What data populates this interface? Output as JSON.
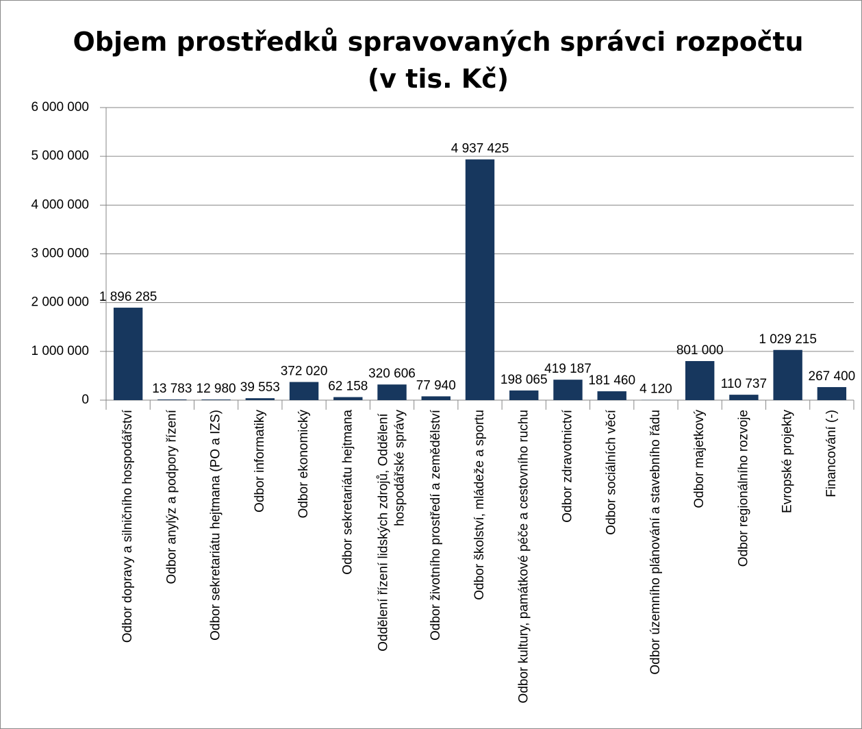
{
  "chart_data": {
    "type": "bar",
    "title": [
      "Objem prostředků spravovaných správci rozpočtu",
      "(v tis. Kč)"
    ],
    "categories": [
      "Odbor dopravy a silničního hospodářství",
      "Odbor anylýz a podpory řízení",
      "Odbor sekretariátu hejtmana (PO a IZS)",
      "Odbor informatiky",
      "Odbor ekonomický",
      "Odbor sekretariátu hejtmana",
      "Oddělení řízení lidských zdrojů, Oddělení hospodářské správy",
      "Odbor životního prostředí a zemědělství",
      "Odbor školství, mládeže a sportu",
      "Odbor kultury, památkové péče a cestovního ruchu",
      "Odbor zdravotnictví",
      "Odbor sociálních věcí",
      "Odbor územního plánování a stavebního řádu",
      "Odbor majetkový",
      "Odbor regionálního rozvoje",
      "Evropské projekty",
      "Financování (-)"
    ],
    "values": [
      1896285,
      13783,
      12980,
      39553,
      372020,
      62158,
      320606,
      77940,
      4937425,
      198065,
      419187,
      181460,
      4120,
      801000,
      110737,
      1029215,
      267400
    ],
    "value_labels": [
      "1 896 285",
      "13 783",
      "12 980",
      "39 553",
      "372 020",
      "62 158",
      "320 606",
      "77 940",
      "4 937 425",
      "198 065",
      "419 187",
      "181 460",
      "4 120",
      "801 000",
      "110 737",
      "1 029 215",
      "267 400"
    ],
    "color": "#17375e",
    "ylim": [
      0,
      6000000
    ],
    "yticks": [
      0,
      {
        "value": 1000000,
        "label": "1 000 000"
      },
      {
        "value": 2000000,
        "label": "2 000 000"
      },
      {
        "value": 3000000,
        "label": "3 000 000"
      },
      {
        "value": 4000000,
        "label": "4 000 000"
      },
      {
        "value": 5000000,
        "label": "5 000 000"
      },
      {
        "value": 6000000,
        "label": "6 000 000"
      }
    ],
    "grid": true
  }
}
